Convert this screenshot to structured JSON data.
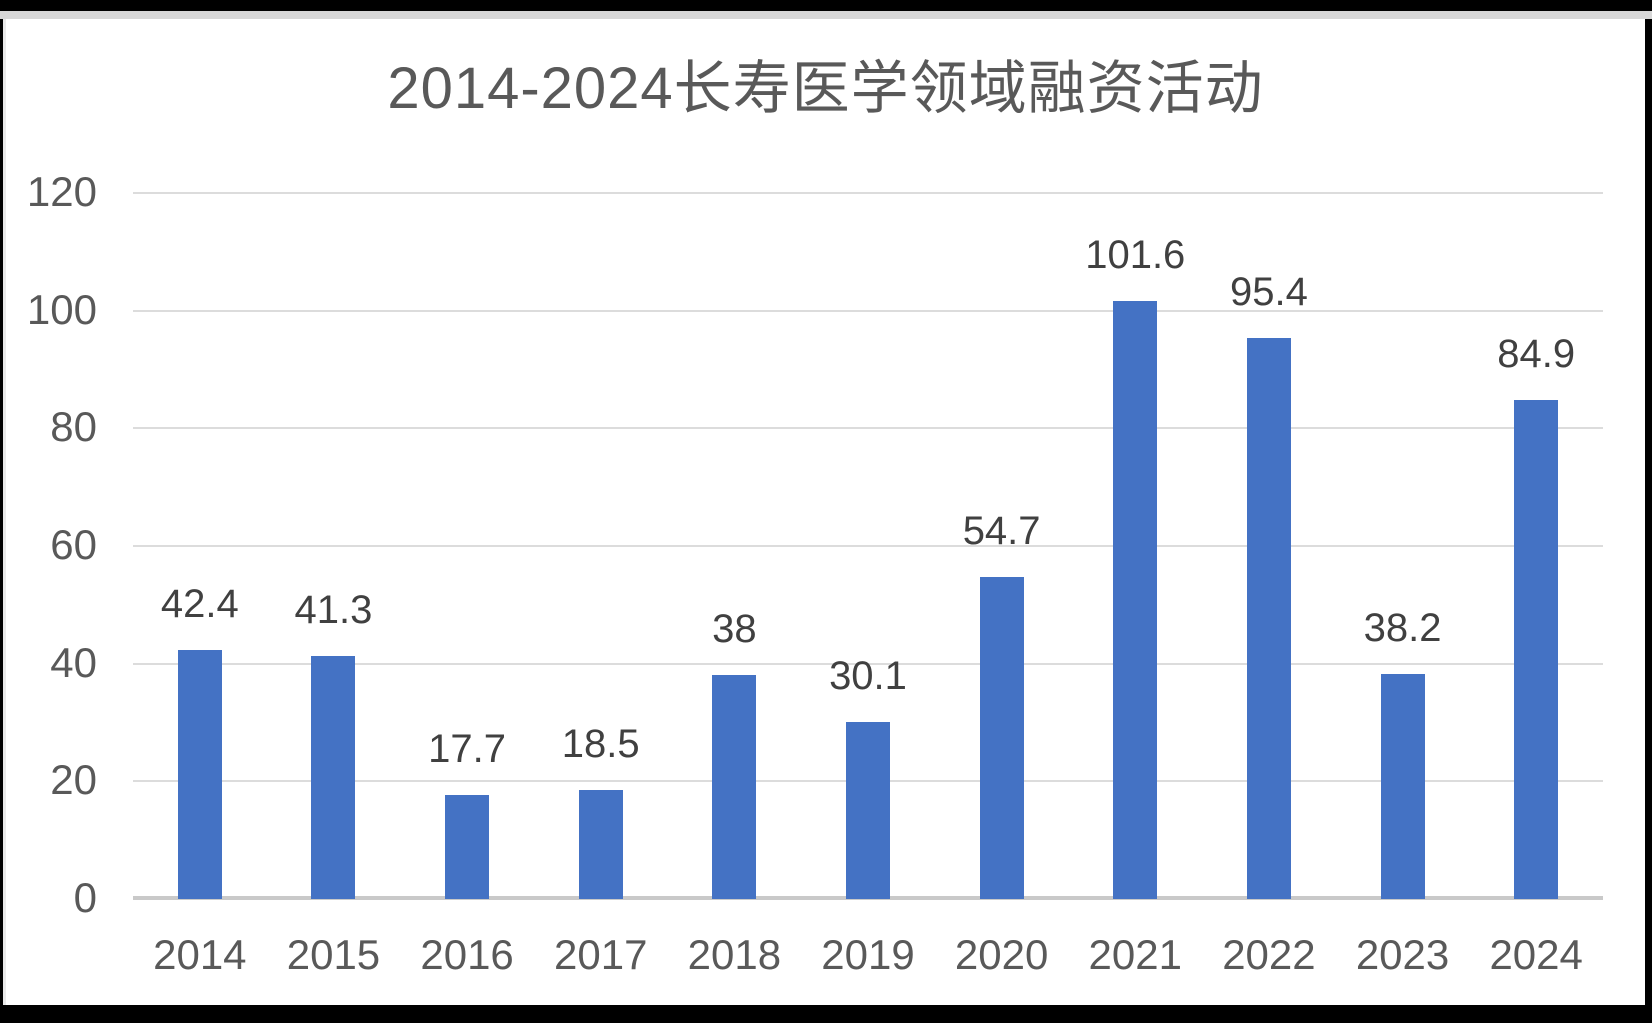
{
  "chart_data": {
    "type": "bar",
    "title": "2014-2024长寿医学领域融资活动",
    "categories": [
      "2014",
      "2015",
      "2016",
      "2017",
      "2018",
      "2019",
      "2020",
      "2021",
      "2022",
      "2023",
      "2024"
    ],
    "values": [
      42.4,
      41.3,
      17.7,
      18.5,
      38,
      30.1,
      54.7,
      101.6,
      95.4,
      38.2,
      84.9
    ],
    "value_labels": [
      "42.4",
      "41.3",
      "17.7",
      "18.5",
      "38",
      "30.1",
      "54.7",
      "101.6",
      "95.4",
      "38.2",
      "84.9"
    ],
    "xlabel": "",
    "ylabel": "",
    "ylim": [
      0,
      120
    ],
    "yticks": [
      0,
      20,
      40,
      60,
      80,
      100,
      120
    ],
    "grid": true,
    "legend": "none",
    "data_labels": true
  },
  "colors": {
    "bar": "#4472C4",
    "title_text": "#595959",
    "axis_text": "#595959",
    "value_text": "#404040",
    "gridline": "#DCDCDC",
    "axis_line": "#C9C9C9",
    "frame": "#000000",
    "background": "#FFFFFF"
  }
}
